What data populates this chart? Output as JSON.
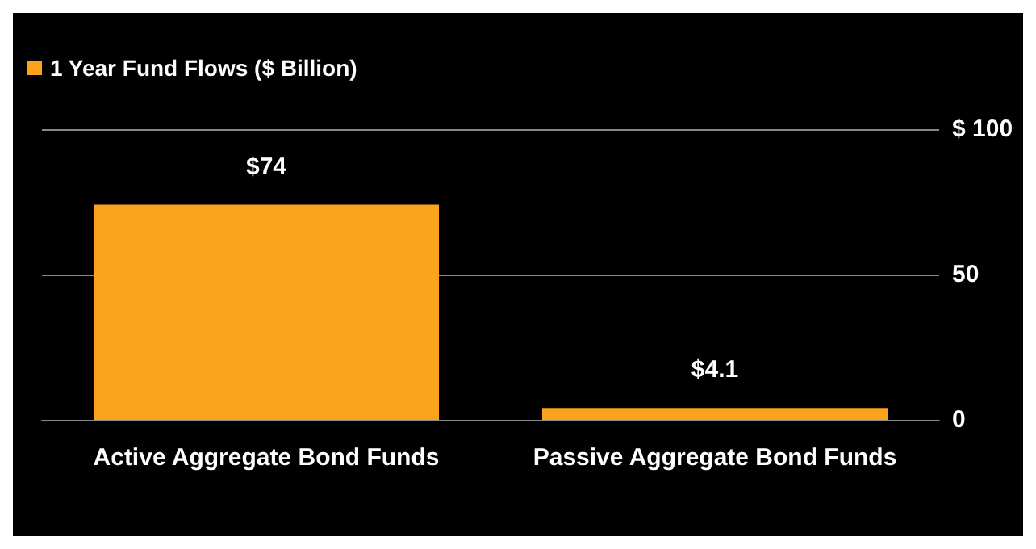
{
  "chart_data": {
    "type": "bar",
    "categories": [
      "Active Aggregate Bond Funds",
      "Passive Aggregate Bond Funds"
    ],
    "series": [
      {
        "name": "1 Year Fund Flows ($ Billion)",
        "color": "#fba31c",
        "values": [
          74,
          4.1
        ],
        "value_labels": [
          "$74",
          "$4.1"
        ]
      }
    ],
    "ylim": [
      0,
      100
    ],
    "yticks": [
      0,
      50,
      {
        "value": 100,
        "label": "$ 100"
      }
    ],
    "grid": "y",
    "legend": "top left"
  }
}
